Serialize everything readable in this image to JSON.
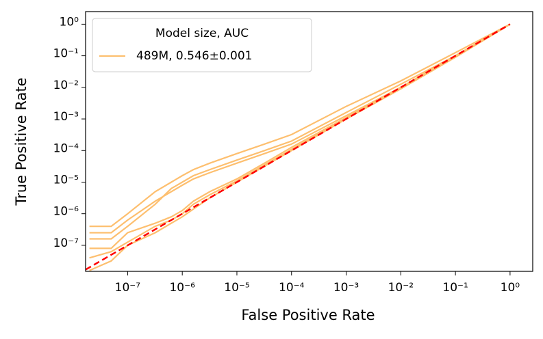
{
  "chart_data": {
    "type": "line",
    "xlabel": "False Positive Rate",
    "ylabel": "True Positive Rate",
    "xscale": "log",
    "yscale": "log",
    "xlim": [
      1.7e-08,
      2.6
    ],
    "ylim": [
      1.5e-08,
      2.5
    ],
    "xticks": [
      {
        "value": 1e-07,
        "label": "10⁻⁷"
      },
      {
        "value": 1e-06,
        "label": "10⁻⁶"
      },
      {
        "value": 1e-05,
        "label": "10⁻⁵"
      },
      {
        "value": 0.0001,
        "label": "10⁻⁴"
      },
      {
        "value": 0.001,
        "label": "10⁻³"
      },
      {
        "value": 0.01,
        "label": "10⁻²"
      },
      {
        "value": 0.1,
        "label": "10⁻¹"
      },
      {
        "value": 1,
        "label": "10⁰"
      }
    ],
    "yticks": [
      {
        "value": 1e-07,
        "label": "10⁻⁷"
      },
      {
        "value": 1e-06,
        "label": "10⁻⁶"
      },
      {
        "value": 1e-05,
        "label": "10⁻⁵"
      },
      {
        "value": 0.0001,
        "label": "10⁻⁴"
      },
      {
        "value": 0.001,
        "label": "10⁻³"
      },
      {
        "value": 0.01,
        "label": "10⁻²"
      },
      {
        "value": 0.1,
        "label": "10⁻¹"
      },
      {
        "value": 1,
        "label": "10⁰"
      }
    ],
    "legend_title": "Model size, AUC",
    "legend_position": "upper left",
    "series": [
      {
        "name": "489M, 0.546±0.001",
        "color": "#fdbf6f",
        "curves": [
          {
            "x": [
              2e-08,
              5e-08,
              1e-07,
              3.2e-07,
              6.3e-07,
              1e-06,
              1.6e-06,
              3.2e-06,
              1e-05,
              3.2e-05,
              0.0001,
              0.001,
              0.01,
              0.1,
              1
            ],
            "y": [
              4e-07,
              4e-07,
              1e-06,
              5e-06,
              1e-05,
              1.6e-05,
              2.5e-05,
              4e-05,
              8e-05,
              0.00016,
              0.00032,
              0.0025,
              0.016,
              0.126,
              1
            ]
          },
          {
            "x": [
              2e-08,
              5e-08,
              1e-07,
              3.2e-07,
              6.3e-07,
              1e-06,
              1.6e-06,
              3.2e-06,
              1e-05,
              3.2e-05,
              0.0001,
              0.001,
              0.01,
              0.1,
              1
            ],
            "y": [
              1.6e-07,
              1.6e-07,
              4e-07,
              2e-06,
              6.3e-06,
              1e-05,
              1.6e-05,
              2.5e-05,
              5e-05,
              0.0001,
              0.0002,
              0.0016,
              0.0126,
              0.1,
              1
            ]
          },
          {
            "x": [
              2e-08,
              5e-08,
              1e-07,
              3.2e-07,
              6.3e-07,
              1e-06,
              1.6e-06,
              3.2e-06,
              1e-05,
              3.2e-05,
              0.0001,
              0.001,
              0.01,
              0.1,
              1
            ],
            "y": [
              2.5e-07,
              2.5e-07,
              6.3e-07,
              2.5e-06,
              5e-06,
              8e-06,
              1.26e-05,
              2e-05,
              4e-05,
              8e-05,
              0.00016,
              0.00126,
              0.01,
              0.1,
              1
            ]
          },
          {
            "x": [
              2e-08,
              5e-08,
              1e-07,
              3.2e-07,
              6.3e-07,
              1e-06,
              1.6e-06,
              3.2e-06,
              1e-05,
              3.2e-05,
              0.0001,
              0.001,
              0.01,
              0.1,
              1
            ],
            "y": [
              8e-08,
              8e-08,
              2.5e-07,
              5e-07,
              8e-07,
              1.26e-06,
              2.5e-06,
              5e-06,
              1.26e-05,
              4e-05,
              0.000126,
              0.0011,
              0.01,
              0.1,
              1
            ]
          },
          {
            "x": [
              2e-08,
              5e-08,
              1e-07,
              3.2e-07,
              6.3e-07,
              1e-06,
              1.6e-06,
              3.2e-06,
              1e-05,
              3.2e-05,
              0.0001,
              0.001,
              0.01,
              0.1,
              1
            ],
            "y": [
              4e-08,
              6.3e-08,
              1.26e-07,
              4e-07,
              6.3e-07,
              1e-06,
              2e-06,
              4e-06,
              1.1e-05,
              3.5e-05,
              0.00011,
              0.001,
              0.009,
              0.09,
              1
            ]
          },
          {
            "x": [
              2e-08,
              5e-08,
              1e-07,
              3.2e-07,
              6.3e-07,
              1e-06,
              1.6e-06,
              3.2e-06,
              1e-05,
              3.2e-05,
              0.0001,
              0.001,
              0.01,
              0.1,
              1
            ],
            "y": [
              1.6e-08,
              3.2e-08,
              1e-07,
              2.5e-07,
              5e-07,
              8e-07,
              1.4e-06,
              3.2e-06,
              1e-05,
              3.2e-05,
              0.0001,
              0.001,
              0.009,
              0.09,
              1
            ]
          }
        ]
      }
    ],
    "reference_line": {
      "color": "#ff0000",
      "dashed": true,
      "x": [
        1.7e-08,
        1
      ],
      "y": [
        1.7e-08,
        1
      ]
    }
  }
}
